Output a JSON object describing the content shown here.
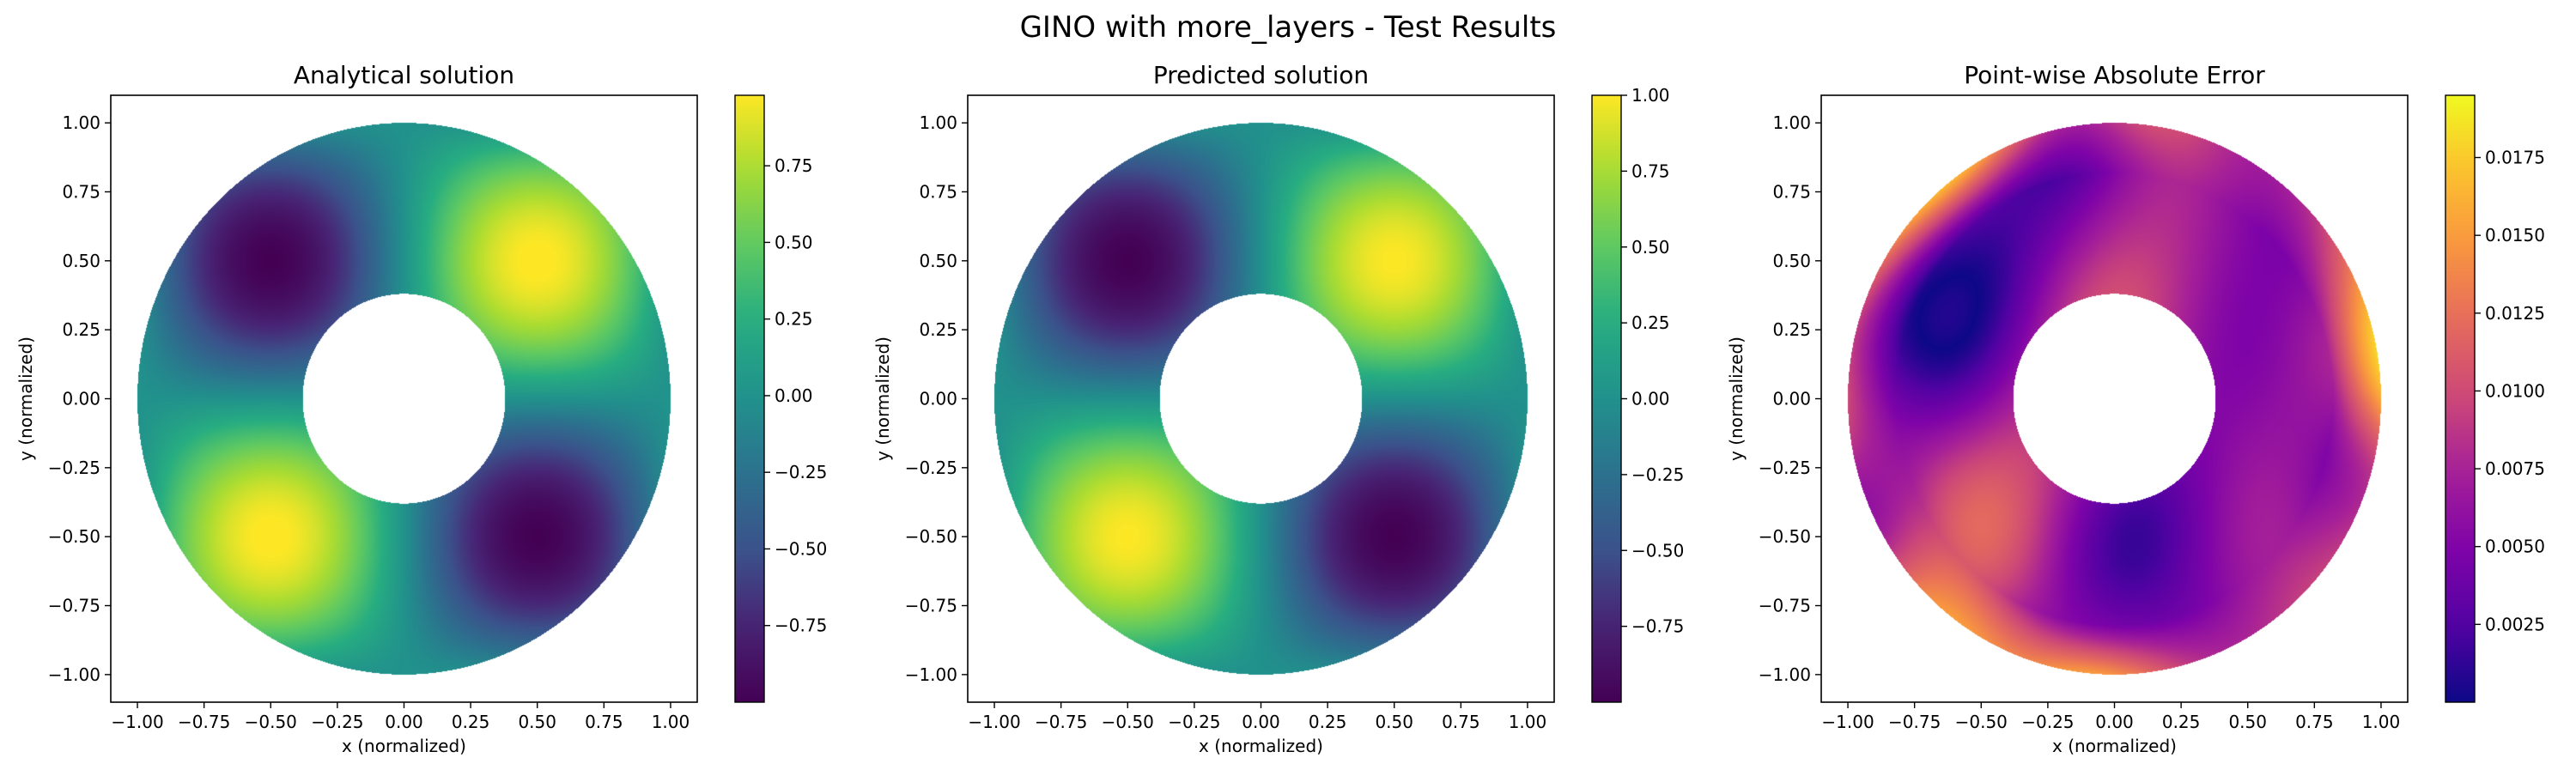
{
  "figure": {
    "suptitle": "GINO with more_layers - Test Results"
  },
  "chart_data": [
    {
      "type": "heatmap",
      "title": "Analytical solution",
      "xlabel": "x (normalized)",
      "ylabel": "y (normalized)",
      "xlim": [
        -1.1,
        1.1
      ],
      "ylim": [
        -1.1,
        1.1
      ],
      "xticks": [
        "−1.00",
        "−0.75",
        "−0.50",
        "−0.25",
        "0.00",
        "0.25",
        "0.50",
        "0.75",
        "1.00"
      ],
      "yticks": [
        "−1.00",
        "−0.75",
        "−0.50",
        "−0.25",
        "0.00",
        "0.25",
        "0.50",
        "0.75",
        "1.00"
      ],
      "domain": "annulus",
      "r_inner": 0.38,
      "r_outer": 1.0,
      "colormap": "viridis",
      "colorbar": {
        "range": [
          -1.0,
          0.98
        ],
        "ticks": [
          "−0.75",
          "−0.50",
          "−0.25",
          "0.00",
          "0.25",
          "0.50",
          "0.75"
        ]
      },
      "field": "sin(pi x) sin(pi y)"
    },
    {
      "type": "heatmap",
      "title": "Predicted solution",
      "xlabel": "x (normalized)",
      "ylabel": "y (normalized)",
      "xlim": [
        -1.1,
        1.1
      ],
      "ylim": [
        -1.1,
        1.1
      ],
      "xticks": [
        "−1.00",
        "−0.75",
        "−0.50",
        "−0.25",
        "0.00",
        "0.25",
        "0.50",
        "0.75",
        "1.00"
      ],
      "yticks": [
        "−1.00",
        "−0.75",
        "−0.50",
        "−0.25",
        "0.00",
        "0.25",
        "0.50",
        "0.75",
        "1.00"
      ],
      "domain": "annulus",
      "r_inner": 0.38,
      "r_outer": 1.0,
      "colormap": "viridis",
      "colorbar": {
        "range": [
          -1.0,
          1.0
        ],
        "ticks": [
          "−0.75",
          "−0.50",
          "−0.25",
          "0.00",
          "0.25",
          "0.50",
          "0.75",
          "1.00"
        ]
      },
      "field": "sin(pi x) sin(pi y)"
    },
    {
      "type": "heatmap",
      "title": "Point-wise Absolute Error",
      "xlabel": "x (normalized)",
      "ylabel": "y (normalized)",
      "xlim": [
        -1.1,
        1.1
      ],
      "ylim": [
        -1.1,
        1.1
      ],
      "xticks": [
        "−1.00",
        "−0.75",
        "−0.50",
        "−0.25",
        "0.00",
        "0.25",
        "0.50",
        "0.75",
        "1.00"
      ],
      "yticks": [
        "−1.00",
        "−0.75",
        "−0.50",
        "−0.25",
        "0.00",
        "0.25",
        "0.50",
        "0.75",
        "1.00"
      ],
      "domain": "annulus",
      "r_inner": 0.38,
      "r_outer": 1.0,
      "colormap": "plasma",
      "colorbar": {
        "range": [
          0.0,
          0.0195
        ],
        "ticks": [
          "0.0025",
          "0.0050",
          "0.0075",
          "0.0100",
          "0.0125",
          "0.0150",
          "0.0175"
        ]
      },
      "field": "error"
    }
  ]
}
